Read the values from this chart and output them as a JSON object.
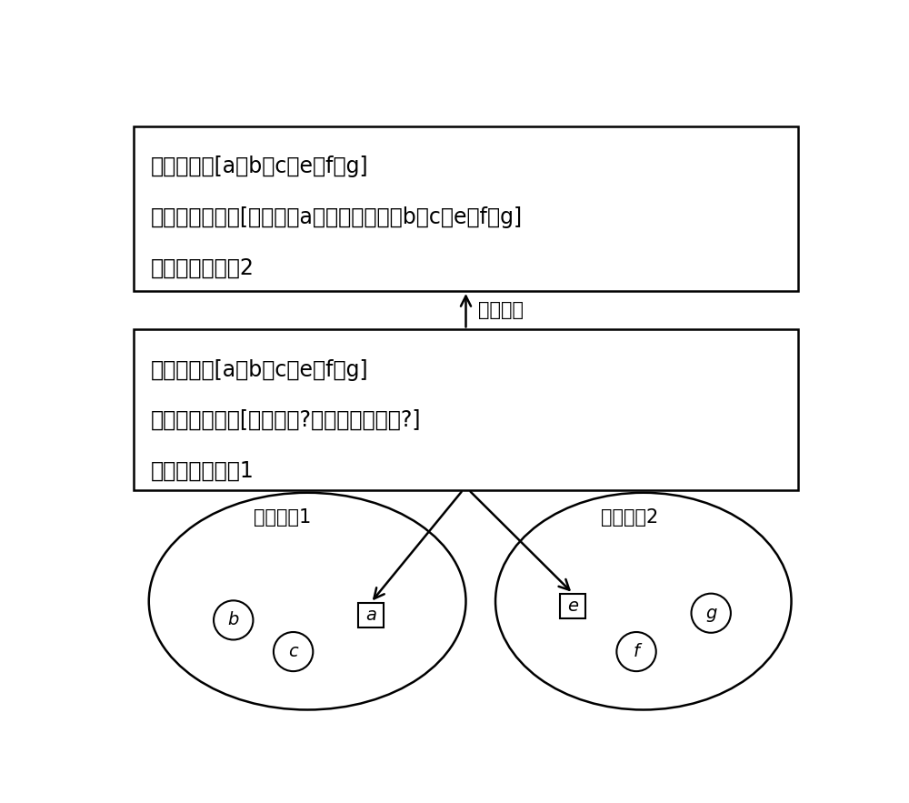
{
  "box1_line1": "集群信息：[a，b，c，e，f，g]",
  "box1_line2": "集群仲裁结果：[主副本：a，备副本列表：b，c，e，f，g]",
  "box1_line3": "集群朝代标识：2",
  "box2_line1": "集群信息：[a，b，c，e，f，g]",
  "box2_line2": "集群仲裁结果：[主副本：?，备副本列表：?]",
  "box2_line3": "集群朝代标识：1",
  "arrow_label": "更新记录",
  "ellipse1_label": "副本集合1",
  "ellipse2_label": "副本集合2",
  "node_a": "a",
  "node_b": "b",
  "node_c": "c",
  "node_e": "e",
  "node_f": "f",
  "node_g": "g",
  "bg_color": "#ffffff",
  "box_edgecolor": "#000000",
  "ellipse_edgecolor": "#000000",
  "text_color": "#000000",
  "arrow_color": "#000000",
  "font_size_box": 17,
  "font_size_label": 15,
  "font_size_node": 14
}
